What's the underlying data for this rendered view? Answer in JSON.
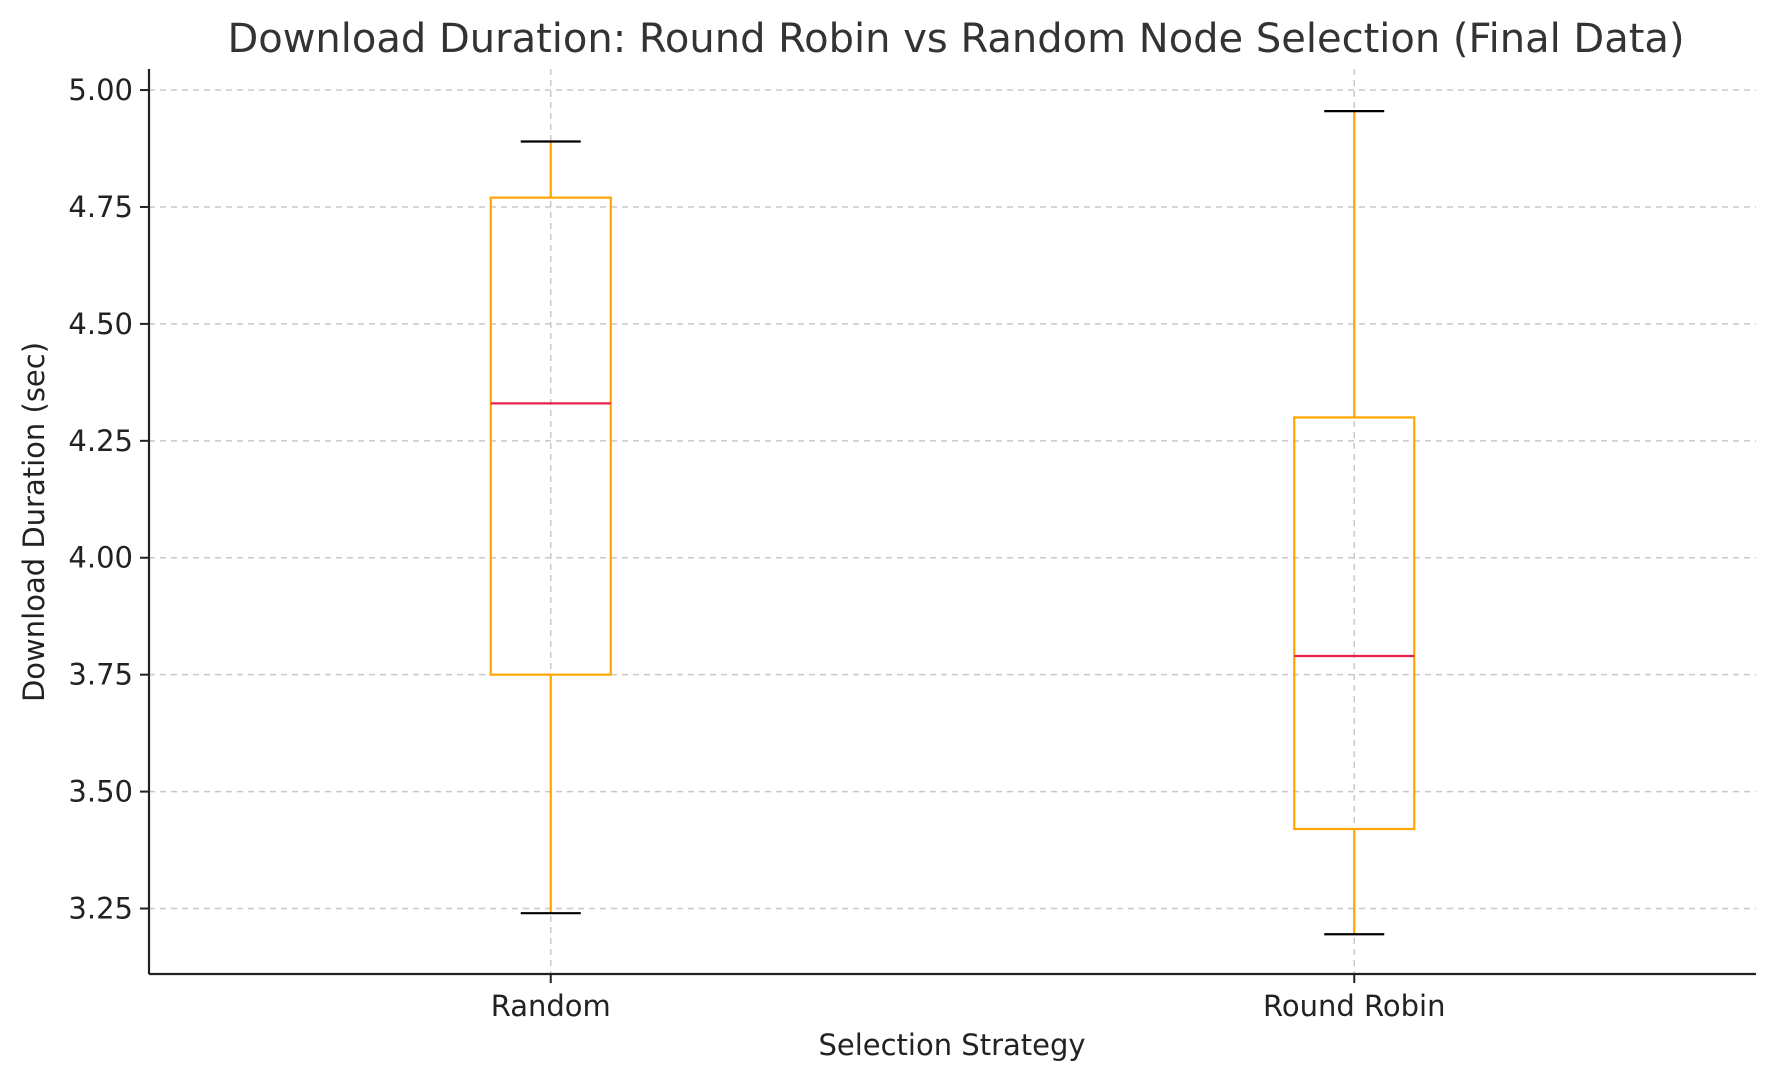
{
  "chart_data": {
    "type": "box",
    "title": "Download Duration: Round Robin vs Random Node Selection (Final Data)",
    "xlabel": "Selection Strategy",
    "ylabel": "Download Duration (sec)",
    "ylim": [
      3.11,
      5.045
    ],
    "yticks": [
      "3.25",
      "3.50",
      "3.75",
      "4.00",
      "4.25",
      "4.50",
      "4.75",
      "5.00"
    ],
    "grid": true,
    "categories": [
      "Random",
      "Round Robin"
    ],
    "boxes": [
      {
        "category": "Random",
        "whisker_low": 3.24,
        "q1": 3.75,
        "median": 4.33,
        "q3": 4.77,
        "whisker_high": 4.89
      },
      {
        "category": "Round Robin",
        "whisker_low": 3.195,
        "q1": 3.42,
        "median": 3.79,
        "q3": 4.3,
        "whisker_high": 4.955
      }
    ],
    "colors": {
      "box": "#FFA500",
      "median": "#E8234A",
      "caps": "#000000"
    }
  }
}
